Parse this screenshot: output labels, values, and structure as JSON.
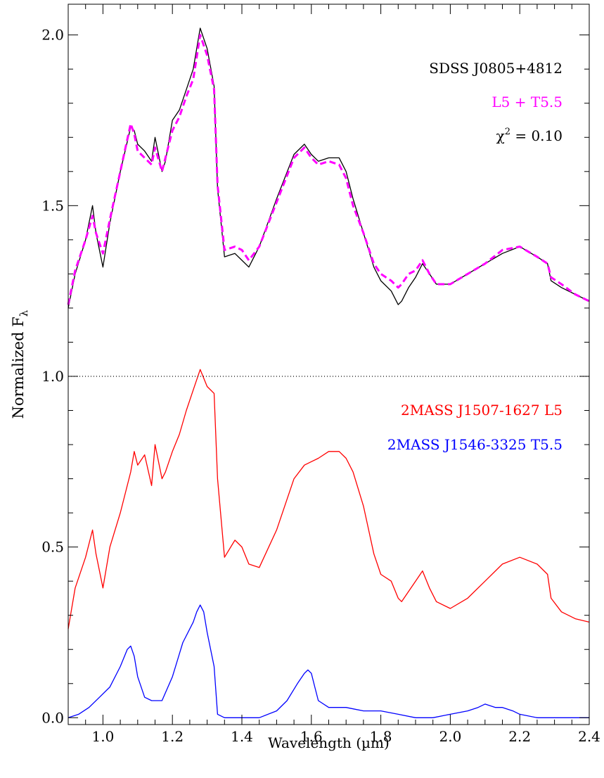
{
  "chart_data": {
    "type": "line",
    "xlabel": "Wavelength (µm)",
    "ylabel_main": "Normalized F",
    "ylabel_sub": "λ",
    "xlim": [
      0.9,
      2.4
    ],
    "ylim": [
      -0.02,
      2.09
    ],
    "xticks": [
      "1.0",
      "1.2",
      "1.4",
      "1.6",
      "1.8",
      "2.0",
      "2.2",
      "2.4"
    ],
    "yticks": [
      "0.0",
      "0.5",
      "1.0",
      "1.5",
      "2.0"
    ],
    "reference_line_y": 1.0,
    "legend_top": {
      "object": "SDSS J0805+4812",
      "model": "L5 + T5.5",
      "chi_prefix": "χ",
      "chi_exp": "2",
      "chi_value": " = 0.10"
    },
    "legend_bottom": {
      "component1": "2MASS J1507-1627 L5",
      "component2": "2MASS J1546-3325 T5.5"
    },
    "colors": {
      "observed": "#000000",
      "composite": "#ff00ff",
      "l5": "#ff0000",
      "t55": "#0000ff",
      "reference": "#000000"
    },
    "series": [
      {
        "name": "SDSS J0805+4812",
        "style": "solid",
        "color": "#000000",
        "x": [
          0.9,
          0.92,
          0.95,
          0.97,
          0.98,
          1.0,
          1.02,
          1.05,
          1.08,
          1.09,
          1.1,
          1.12,
          1.14,
          1.15,
          1.17,
          1.18,
          1.2,
          1.22,
          1.24,
          1.26,
          1.28,
          1.3,
          1.32,
          1.33,
          1.35,
          1.38,
          1.4,
          1.42,
          1.45,
          1.5,
          1.55,
          1.58,
          1.6,
          1.62,
          1.65,
          1.68,
          1.7,
          1.72,
          1.75,
          1.78,
          1.8,
          1.83,
          1.85,
          1.86,
          1.88,
          1.9,
          1.92,
          1.94,
          1.96,
          2.0,
          2.05,
          2.1,
          2.15,
          2.2,
          2.25,
          2.28,
          2.29,
          2.32,
          2.36,
          2.4
        ],
        "y": [
          1.2,
          1.3,
          1.4,
          1.5,
          1.42,
          1.32,
          1.45,
          1.6,
          1.73,
          1.72,
          1.68,
          1.66,
          1.63,
          1.7,
          1.6,
          1.63,
          1.75,
          1.78,
          1.84,
          1.9,
          2.02,
          1.96,
          1.85,
          1.55,
          1.35,
          1.36,
          1.34,
          1.32,
          1.38,
          1.52,
          1.65,
          1.68,
          1.65,
          1.63,
          1.64,
          1.64,
          1.6,
          1.52,
          1.42,
          1.32,
          1.28,
          1.25,
          1.21,
          1.22,
          1.26,
          1.29,
          1.33,
          1.3,
          1.27,
          1.27,
          1.3,
          1.33,
          1.36,
          1.38,
          1.35,
          1.33,
          1.28,
          1.26,
          1.24,
          1.22
        ]
      },
      {
        "name": "L5 + T5.5",
        "style": "dashed",
        "color": "#ff00ff",
        "x": [
          0.9,
          0.92,
          0.95,
          0.97,
          0.98,
          1.0,
          1.02,
          1.05,
          1.08,
          1.09,
          1.1,
          1.12,
          1.14,
          1.15,
          1.17,
          1.18,
          1.2,
          1.22,
          1.24,
          1.26,
          1.28,
          1.3,
          1.32,
          1.33,
          1.35,
          1.38,
          1.4,
          1.42,
          1.45,
          1.5,
          1.55,
          1.58,
          1.6,
          1.62,
          1.65,
          1.68,
          1.7,
          1.72,
          1.75,
          1.78,
          1.8,
          1.83,
          1.85,
          1.86,
          1.88,
          1.9,
          1.92,
          1.94,
          1.96,
          2.0,
          2.05,
          2.1,
          2.15,
          2.2,
          2.25,
          2.28,
          2.29,
          2.32,
          2.36,
          2.4
        ],
        "y": [
          1.21,
          1.31,
          1.4,
          1.47,
          1.42,
          1.36,
          1.46,
          1.6,
          1.74,
          1.71,
          1.66,
          1.64,
          1.62,
          1.67,
          1.6,
          1.64,
          1.72,
          1.76,
          1.82,
          1.87,
          2.0,
          1.94,
          1.84,
          1.56,
          1.37,
          1.38,
          1.37,
          1.34,
          1.38,
          1.51,
          1.64,
          1.67,
          1.64,
          1.62,
          1.63,
          1.62,
          1.58,
          1.5,
          1.42,
          1.33,
          1.3,
          1.28,
          1.26,
          1.27,
          1.3,
          1.31,
          1.34,
          1.3,
          1.27,
          1.27,
          1.3,
          1.33,
          1.37,
          1.38,
          1.35,
          1.33,
          1.29,
          1.27,
          1.24,
          1.22
        ]
      },
      {
        "name": "2MASS J1507-1627 L5",
        "style": "solid",
        "color": "#ff0000",
        "x": [
          0.9,
          0.92,
          0.95,
          0.97,
          0.98,
          1.0,
          1.02,
          1.05,
          1.08,
          1.09,
          1.1,
          1.12,
          1.14,
          1.15,
          1.17,
          1.18,
          1.2,
          1.22,
          1.24,
          1.26,
          1.28,
          1.3,
          1.32,
          1.33,
          1.35,
          1.38,
          1.4,
          1.42,
          1.45,
          1.5,
          1.55,
          1.58,
          1.6,
          1.62,
          1.65,
          1.68,
          1.7,
          1.72,
          1.75,
          1.78,
          1.8,
          1.83,
          1.85,
          1.86,
          1.88,
          1.9,
          1.92,
          1.94,
          1.96,
          2.0,
          2.05,
          2.1,
          2.15,
          2.2,
          2.25,
          2.28,
          2.29,
          2.32,
          2.36,
          2.4
        ],
        "y": [
          0.26,
          0.38,
          0.47,
          0.55,
          0.48,
          0.38,
          0.5,
          0.6,
          0.72,
          0.78,
          0.74,
          0.77,
          0.68,
          0.8,
          0.7,
          0.72,
          0.78,
          0.83,
          0.9,
          0.96,
          1.02,
          0.97,
          0.95,
          0.7,
          0.47,
          0.52,
          0.5,
          0.45,
          0.44,
          0.55,
          0.7,
          0.74,
          0.75,
          0.76,
          0.78,
          0.78,
          0.76,
          0.72,
          0.62,
          0.48,
          0.42,
          0.4,
          0.35,
          0.34,
          0.37,
          0.4,
          0.43,
          0.38,
          0.34,
          0.32,
          0.35,
          0.4,
          0.45,
          0.47,
          0.45,
          0.42,
          0.35,
          0.31,
          0.29,
          0.28
        ]
      },
      {
        "name": "2MASS J1546-3325 T5.5",
        "style": "solid",
        "color": "#0000ff",
        "x": [
          0.9,
          0.93,
          0.96,
          0.99,
          1.02,
          1.05,
          1.07,
          1.08,
          1.09,
          1.1,
          1.12,
          1.14,
          1.17,
          1.2,
          1.23,
          1.26,
          1.27,
          1.28,
          1.29,
          1.3,
          1.32,
          1.33,
          1.35,
          1.4,
          1.45,
          1.5,
          1.53,
          1.56,
          1.58,
          1.59,
          1.6,
          1.61,
          1.62,
          1.65,
          1.7,
          1.75,
          1.8,
          1.85,
          1.9,
          1.95,
          2.0,
          2.05,
          2.08,
          2.1,
          2.13,
          2.15,
          2.18,
          2.2,
          2.25,
          2.3,
          2.35,
          2.4
        ],
        "y": [
          0.0,
          0.01,
          0.03,
          0.06,
          0.09,
          0.15,
          0.2,
          0.21,
          0.18,
          0.12,
          0.06,
          0.05,
          0.05,
          0.12,
          0.22,
          0.28,
          0.31,
          0.33,
          0.31,
          0.25,
          0.15,
          0.01,
          0.0,
          0.0,
          0.0,
          0.02,
          0.05,
          0.1,
          0.13,
          0.14,
          0.13,
          0.09,
          0.05,
          0.03,
          0.03,
          0.02,
          0.02,
          0.01,
          0.0,
          0.0,
          0.01,
          0.02,
          0.03,
          0.04,
          0.03,
          0.03,
          0.02,
          0.01,
          0.0,
          0.0,
          0.0,
          0.0
        ]
      }
    ]
  }
}
